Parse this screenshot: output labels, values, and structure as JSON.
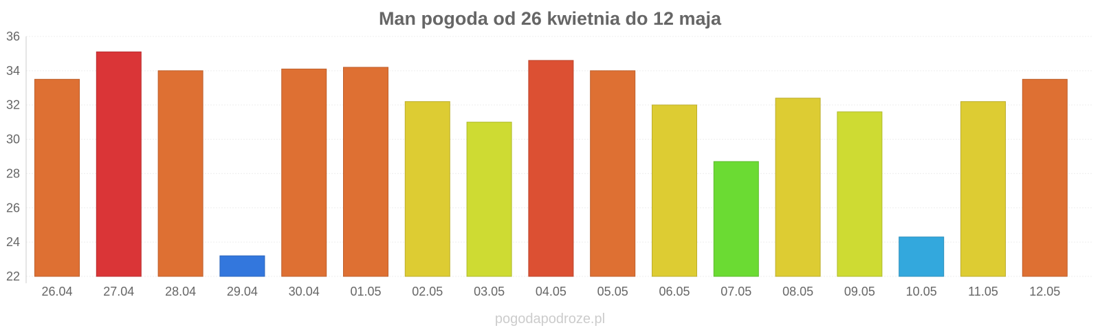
{
  "chart_data": {
    "type": "bar",
    "title": "Man pogoda od 26 kwietnia do 12 maja",
    "categories": [
      "26.04",
      "27.04",
      "28.04",
      "29.04",
      "30.04",
      "01.05",
      "02.05",
      "03.05",
      "04.05",
      "05.05",
      "06.05",
      "07.05",
      "08.05",
      "09.05",
      "10.05",
      "11.05",
      "12.05"
    ],
    "values": [
      33.5,
      35.1,
      34.0,
      23.2,
      34.1,
      34.2,
      32.2,
      31.0,
      34.6,
      34.0,
      32.0,
      28.7,
      32.4,
      31.6,
      24.3,
      32.2,
      33.5
    ],
    "colors": [
      "#de7033",
      "#da3537",
      "#de7033",
      "#3377dd",
      "#de7033",
      "#de7033",
      "#ddcc33",
      "#cedb33",
      "#dc5033",
      "#de7033",
      "#ddcc33",
      "#6bdb33",
      "#ddcc33",
      "#cedb33",
      "#33a8dd",
      "#ddcc33",
      "#de7033"
    ],
    "xlabel": "",
    "ylabel": "",
    "ylim": [
      22,
      36
    ],
    "yticks": [
      "22",
      "24",
      "26",
      "28",
      "30",
      "32",
      "34",
      "36"
    ],
    "grid": true,
    "legend": "none"
  },
  "footer": {
    "credit": "pogodapodroze.pl"
  }
}
